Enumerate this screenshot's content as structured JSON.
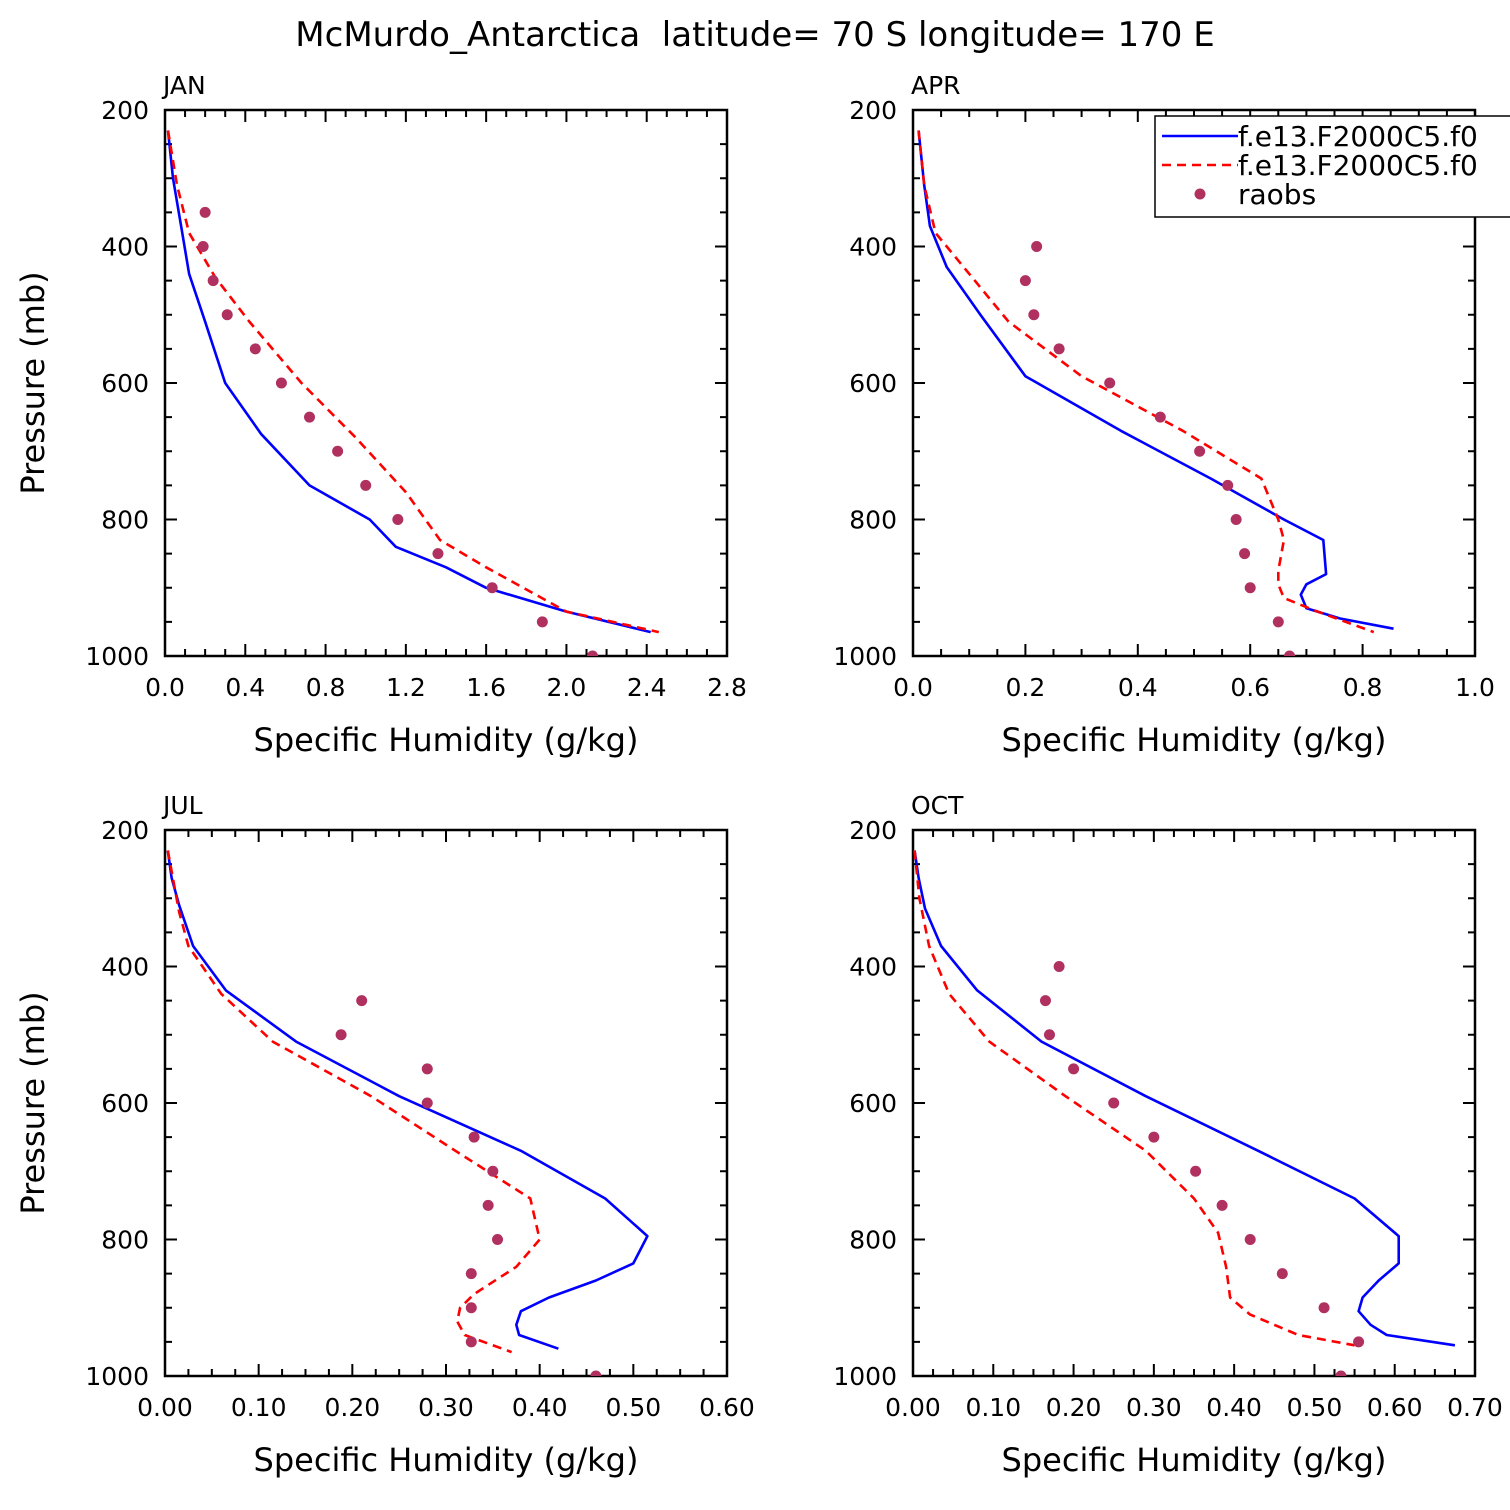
{
  "figure": {
    "title": "McMurdo_Antarctica  latitude= 70 S longitude= 170 E"
  },
  "legend": {
    "placement": "top-right of APR panel",
    "entries": [
      {
        "label": "f.e13.F2000C5.f0",
        "style": "solid line",
        "color": "#0000ff"
      },
      {
        "label": "f.e13.F2000C5.f0",
        "style": "dashed line",
        "color": "#ff0000"
      },
      {
        "label": "raobs",
        "style": "dots",
        "color": "#b03060"
      }
    ]
  },
  "chart_data": [
    {
      "type": "line",
      "title": "JAN",
      "xlabel": "Specific Humidity (g/kg)",
      "ylabel": "Pressure (mb)",
      "xlim": [
        0,
        2.8
      ],
      "ylim": [
        200,
        1000
      ],
      "y_inverted": true,
      "xticks": [
        "0.0",
        "0.4",
        "0.8",
        "1.2",
        "1.6",
        "2.0",
        "2.4",
        "2.8"
      ],
      "yticks": [
        "200",
        "400",
        "600",
        "800",
        "1000"
      ],
      "series": [
        {
          "name": "f.e13.F2000C5.f0",
          "style": "solid",
          "color": "#0000ff",
          "x": [
            0.015,
            0.04,
            0.08,
            0.12,
            0.2,
            0.3,
            0.48,
            0.72,
            1.02,
            1.15,
            1.4,
            1.6,
            2.0,
            2.42
          ],
          "y": [
            230,
            300,
            370,
            440,
            510,
            600,
            675,
            750,
            800,
            840,
            870,
            900,
            935,
            965
          ]
        },
        {
          "name": "f.e13.F2000C5.f0",
          "style": "dashed",
          "color": "#ff0000",
          "x": [
            0.015,
            0.06,
            0.12,
            0.25,
            0.42,
            0.68,
            0.95,
            1.2,
            1.37,
            1.6,
            2.0,
            2.46
          ],
          "y": [
            230,
            310,
            380,
            445,
            510,
            600,
            680,
            760,
            830,
            870,
            935,
            965
          ]
        },
        {
          "name": "raobs",
          "style": "dots",
          "color": "#b03060",
          "x": [
            0.2,
            0.19,
            0.24,
            0.31,
            0.45,
            0.58,
            0.72,
            0.86,
            1.0,
            1.16,
            1.36,
            1.63,
            1.88,
            2.13
          ],
          "y": [
            350,
            400,
            450,
            500,
            550,
            600,
            650,
            700,
            750,
            800,
            850,
            900,
            950,
            1000
          ]
        }
      ]
    },
    {
      "type": "line",
      "title": "APR",
      "xlabel": "Specific Humidity (g/kg)",
      "ylabel": "",
      "xlim": [
        0,
        1.0
      ],
      "ylim": [
        200,
        1000
      ],
      "y_inverted": true,
      "xticks": [
        "0.0",
        "0.2",
        "0.4",
        "0.6",
        "0.8",
        "1.0"
      ],
      "yticks": [
        "200",
        "400",
        "600",
        "800",
        "1000"
      ],
      "series": [
        {
          "name": "f.e13.F2000C5.f0",
          "style": "solid",
          "color": "#0000ff",
          "x": [
            0.01,
            0.02,
            0.03,
            0.06,
            0.12,
            0.2,
            0.37,
            0.53,
            0.66,
            0.73,
            0.735,
            0.7,
            0.69,
            0.7,
            0.76,
            0.855
          ],
          "y": [
            230,
            310,
            370,
            430,
            500,
            590,
            670,
            740,
            800,
            830,
            880,
            895,
            910,
            930,
            945,
            960
          ]
        },
        {
          "name": "f.e13.F2000C5.f0",
          "style": "dashed",
          "color": "#ff0000",
          "x": [
            0.01,
            0.02,
            0.04,
            0.1,
            0.17,
            0.3,
            0.48,
            0.62,
            0.65,
            0.66,
            0.65,
            0.65,
            0.66,
            0.72,
            0.82
          ],
          "y": [
            230,
            310,
            380,
            440,
            510,
            590,
            670,
            740,
            800,
            830,
            875,
            895,
            915,
            935,
            965
          ]
        },
        {
          "name": "raobs",
          "style": "dots",
          "color": "#b03060",
          "x": [
            0.22,
            0.2,
            0.215,
            0.26,
            0.35,
            0.44,
            0.51,
            0.56,
            0.575,
            0.59,
            0.6,
            0.65,
            0.67
          ],
          "y": [
            400,
            450,
            500,
            550,
            600,
            650,
            700,
            750,
            800,
            850,
            900,
            950,
            1000
          ]
        }
      ]
    },
    {
      "type": "line",
      "title": "JUL",
      "xlabel": "Specific Humidity (g/kg)",
      "ylabel": "Pressure (mb)",
      "xlim": [
        0,
        0.6
      ],
      "ylim": [
        200,
        1000
      ],
      "y_inverted": true,
      "xticks": [
        "0.00",
        "0.10",
        "0.20",
        "0.30",
        "0.40",
        "0.50",
        "0.60"
      ],
      "yticks": [
        "200",
        "400",
        "600",
        "800",
        "1000"
      ],
      "series": [
        {
          "name": "f.e13.F2000C5.f0",
          "style": "solid",
          "color": "#0000ff",
          "x": [
            0.003,
            0.007,
            0.015,
            0.03,
            0.065,
            0.14,
            0.25,
            0.38,
            0.47,
            0.515,
            0.5,
            0.46,
            0.41,
            0.38,
            0.375,
            0.378,
            0.42
          ],
          "y": [
            230,
            270,
            310,
            370,
            435,
            510,
            590,
            670,
            740,
            795,
            835,
            860,
            885,
            905,
            925,
            940,
            960
          ]
        },
        {
          "name": "f.e13.F2000C5.f0",
          "style": "dashed",
          "color": "#ff0000",
          "x": [
            0.003,
            0.015,
            0.025,
            0.06,
            0.115,
            0.22,
            0.31,
            0.39,
            0.4,
            0.375,
            0.33,
            0.315,
            0.312,
            0.32,
            0.37
          ],
          "y": [
            230,
            320,
            370,
            440,
            510,
            590,
            670,
            740,
            800,
            840,
            880,
            900,
            920,
            940,
            965
          ]
        },
        {
          "name": "raobs",
          "style": "dots",
          "color": "#b03060",
          "x": [
            0.21,
            0.188,
            0.28,
            0.28,
            0.33,
            0.35,
            0.345,
            0.355,
            0.327,
            0.327,
            0.327,
            0.46
          ],
          "y": [
            450,
            500,
            550,
            600,
            650,
            700,
            750,
            800,
            850,
            900,
            950,
            1000
          ]
        }
      ]
    },
    {
      "type": "line",
      "title": "OCT",
      "xlabel": "Specific Humidity (g/kg)",
      "ylabel": "",
      "xlim": [
        0,
        0.7
      ],
      "ylim": [
        200,
        1000
      ],
      "y_inverted": true,
      "xticks": [
        "0.00",
        "0.10",
        "0.20",
        "0.30",
        "0.40",
        "0.50",
        "0.60",
        "0.70"
      ],
      "yticks": [
        "200",
        "400",
        "600",
        "800",
        "1000"
      ],
      "series": [
        {
          "name": "f.e13.F2000C5.f0",
          "style": "solid",
          "color": "#0000ff",
          "x": [
            0.002,
            0.007,
            0.015,
            0.035,
            0.08,
            0.16,
            0.29,
            0.43,
            0.55,
            0.605,
            0.605,
            0.58,
            0.56,
            0.555,
            0.57,
            0.59,
            0.675
          ],
          "y": [
            230,
            270,
            315,
            370,
            435,
            510,
            590,
            670,
            740,
            795,
            835,
            860,
            885,
            905,
            925,
            940,
            955
          ]
        },
        {
          "name": "f.e13.F2000C5.f0",
          "style": "dashed",
          "color": "#ff0000",
          "x": [
            0.002,
            0.008,
            0.02,
            0.045,
            0.095,
            0.19,
            0.29,
            0.35,
            0.38,
            0.39,
            0.395,
            0.42,
            0.48,
            0.55
          ],
          "y": [
            230,
            300,
            370,
            440,
            510,
            590,
            670,
            740,
            790,
            840,
            885,
            910,
            940,
            955
          ]
        },
        {
          "name": "raobs",
          "style": "dots",
          "color": "#b03060",
          "x": [
            0.182,
            0.165,
            0.17,
            0.2,
            0.25,
            0.3,
            0.352,
            0.385,
            0.42,
            0.46,
            0.512,
            0.555,
            0.533
          ],
          "y": [
            400,
            450,
            500,
            550,
            600,
            650,
            700,
            750,
            800,
            850,
            900,
            950,
            1000
          ]
        }
      ]
    }
  ]
}
